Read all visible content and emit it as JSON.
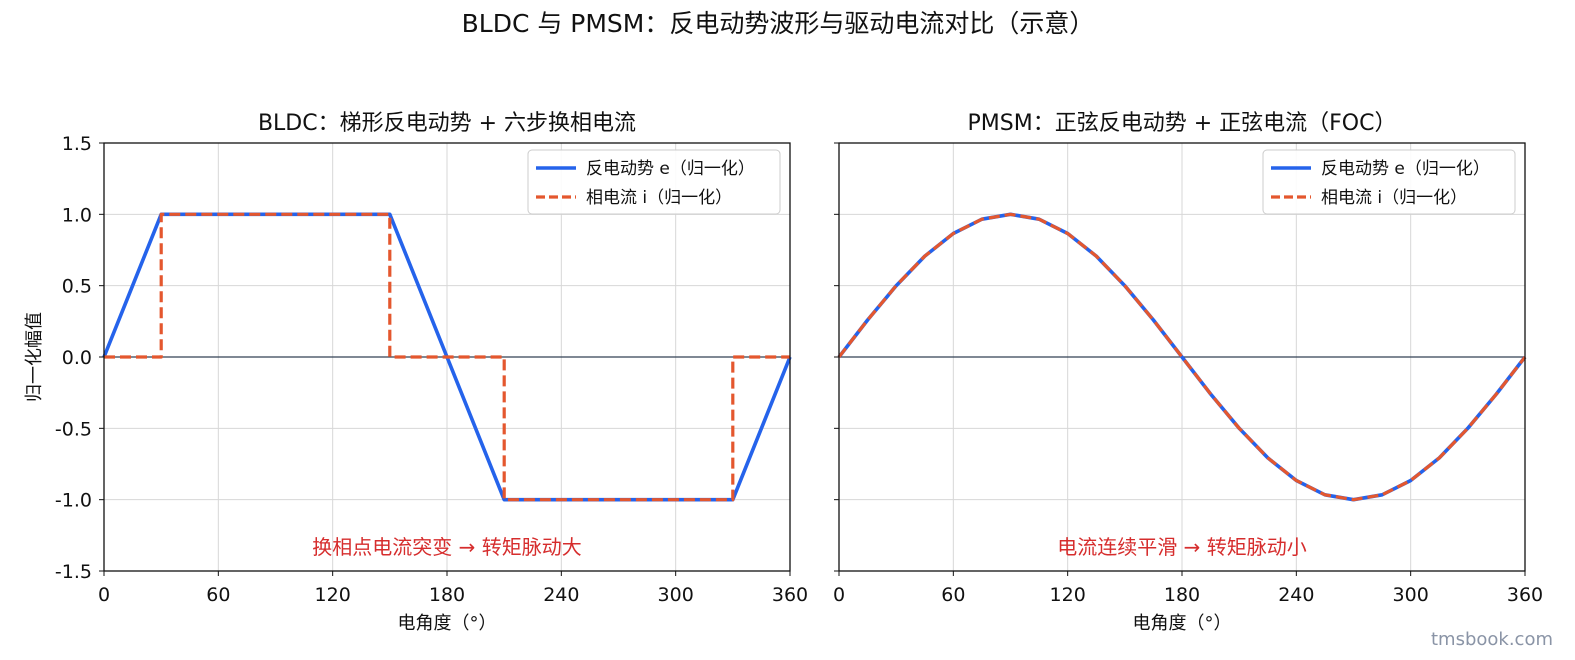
{
  "figure": {
    "suptitle": "BLDC 与 PMSM：反电动势波形与驱动电流对比（示意）",
    "watermark": "tmsbook.com"
  },
  "colors": {
    "emf": "#2563eb",
    "current": "#e4572e",
    "annotation": "#d62d2d",
    "zero_line": "#334155",
    "grid": "#d7d7d7"
  },
  "chart_data": [
    {
      "type": "line",
      "title": "BLDC：梯形反电动势 + 六步换相电流",
      "xlabel": "电角度（°）",
      "ylabel": "归一化幅值",
      "xlim": [
        0,
        360
      ],
      "ylim": [
        -1.5,
        1.5
      ],
      "xticks": [
        0,
        60,
        120,
        180,
        240,
        300,
        360
      ],
      "yticks": [
        1.5,
        1.0,
        0.5,
        0.0,
        -0.5,
        -1.0,
        -1.5
      ],
      "ytick_labels": [
        "1.5",
        "1.0",
        "0.5",
        "0.0",
        "-0.5",
        "-1.0",
        "-1.5"
      ],
      "grid": true,
      "legend_position": "upper-right",
      "annotation": "换相点电流突变 → 转矩脉动大",
      "series": [
        {
          "name": "反电动势 e（归一化）",
          "style": "solid",
          "x": [
            0,
            30,
            150,
            210,
            330,
            360
          ],
          "y": [
            0,
            1,
            1,
            -1,
            -1,
            0
          ]
        },
        {
          "name": "相电流 i（归一化）",
          "style": "dashed",
          "x": [
            0,
            30,
            30,
            150,
            150,
            210,
            210,
            330,
            330,
            360
          ],
          "y": [
            0,
            0,
            1,
            1,
            0,
            0,
            -1,
            -1,
            0,
            0
          ]
        }
      ]
    },
    {
      "type": "line",
      "title": "PMSM：正弦反电动势 + 正弦电流（FOC）",
      "xlabel": "电角度（°）",
      "ylabel": "",
      "xlim": [
        0,
        360
      ],
      "ylim": [
        -1.5,
        1.5
      ],
      "xticks": [
        0,
        60,
        120,
        180,
        240,
        300,
        360
      ],
      "grid": true,
      "legend_position": "upper-right",
      "annotation": "电流连续平滑 → 转矩脉动小",
      "series": [
        {
          "name": "反电动势 e（归一化）",
          "style": "solid",
          "x": [
            0,
            15,
            30,
            45,
            60,
            75,
            90,
            105,
            120,
            135,
            150,
            165,
            180,
            195,
            210,
            225,
            240,
            255,
            270,
            285,
            300,
            315,
            330,
            345,
            360
          ],
          "y": [
            0,
            0.259,
            0.5,
            0.707,
            0.866,
            0.966,
            1,
            0.966,
            0.866,
            0.707,
            0.5,
            0.259,
            0,
            -0.259,
            -0.5,
            -0.707,
            -0.866,
            -0.966,
            -1,
            -0.966,
            -0.866,
            -0.707,
            -0.5,
            -0.259,
            0
          ]
        },
        {
          "name": "相电流 i（归一化）",
          "style": "dashed",
          "x": [
            0,
            15,
            30,
            45,
            60,
            75,
            90,
            105,
            120,
            135,
            150,
            165,
            180,
            195,
            210,
            225,
            240,
            255,
            270,
            285,
            300,
            315,
            330,
            345,
            360
          ],
          "y": [
            0,
            0.259,
            0.5,
            0.707,
            0.866,
            0.966,
            1,
            0.966,
            0.866,
            0.707,
            0.5,
            0.259,
            0,
            -0.259,
            -0.5,
            -0.707,
            -0.866,
            -0.966,
            -1,
            -0.966,
            -0.866,
            -0.707,
            -0.5,
            -0.259,
            0
          ]
        }
      ]
    }
  ]
}
